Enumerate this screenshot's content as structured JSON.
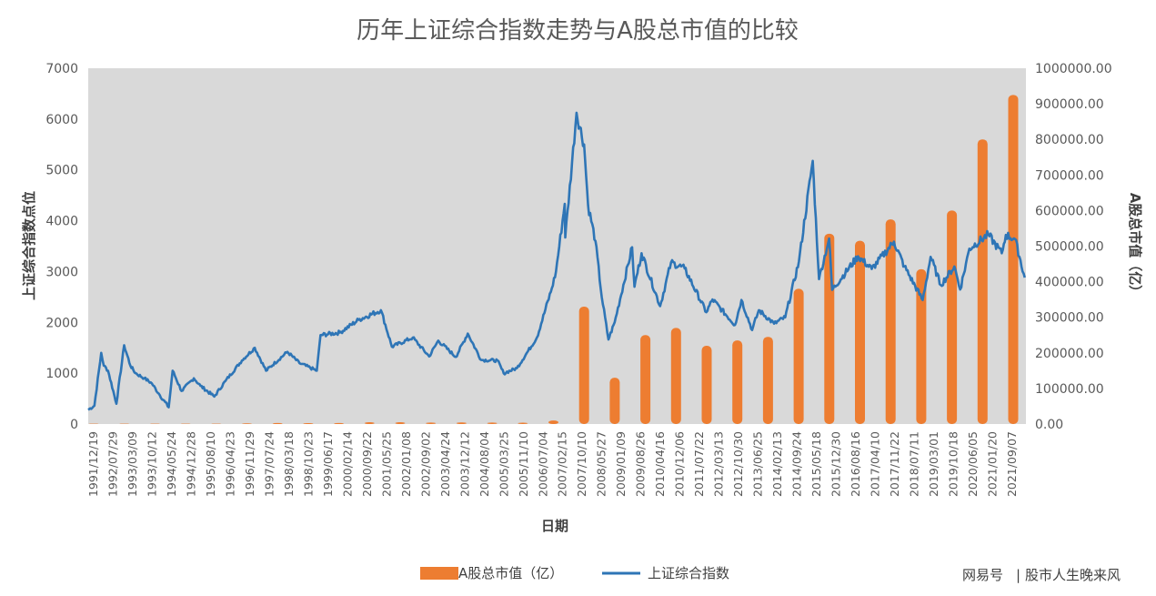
{
  "chart_data": {
    "type": "bar+line",
    "title": "历年上证综合指数走势与A股总市值的比较",
    "xlabel": "日期",
    "ylabel_left": "上证综合指数点位",
    "ylabel_right": "A股总市值（亿）",
    "ylim_left": [
      0,
      7000
    ],
    "ylim_right": [
      0,
      1000000
    ],
    "yticks_left": [
      "0",
      "1000",
      "2000",
      "3000",
      "4000",
      "5000",
      "6000",
      "7000"
    ],
    "yticks_right": [
      "0.00",
      "100000.00",
      "200000.00",
      "300000.00",
      "400000.00",
      "500000.00",
      "600000.00",
      "700000.00",
      "800000.00",
      "900000.00",
      "1000000.00"
    ],
    "categories": [
      "1991/12/19",
      "1992/07/29",
      "1993/03/09",
      "1993/10/12",
      "1994/05/24",
      "1994/12/28",
      "1995/08/10",
      "1996/04/23",
      "1996/11/29",
      "1997/07/24",
      "1998/03/18",
      "1998/10/23",
      "1999/06/17",
      "2000/02/14",
      "2000/09/22",
      "2001/05/25",
      "2002/01/08",
      "2002/09/02",
      "2003/04/24",
      "2003/12/12",
      "2004/08/04",
      "2005/03/25",
      "2005/11/10",
      "2006/07/04",
      "2007/02/15",
      "2007/10/10",
      "2008/05/27",
      "2009/01/09",
      "2009/08/26",
      "2010/04/16",
      "2010/12/06",
      "2011/07/22",
      "2012/03/13",
      "2012/10/30",
      "2013/06/25",
      "2014/02/13",
      "2014/09/24",
      "2015/05/18",
      "2015/12/30",
      "2016/08/16",
      "2017/04/10",
      "2017/11/22",
      "2018/07/11",
      "2019/03/01",
      "2019/10/18",
      "2020/06/05",
      "2021/01/20",
      "2021/09/07"
    ],
    "legend_position": "bottom",
    "grid": false,
    "series": [
      {
        "name": "A股总市值（亿）",
        "type": "bar",
        "axis": "right",
        "color": "#ED7D31",
        "bars": [
          {
            "date": "1991",
            "value": 1000
          },
          {
            "date": "1992",
            "value": 1000
          },
          {
            "date": "1993",
            "value": 1000
          },
          {
            "date": "1994",
            "value": 1000
          },
          {
            "date": "1995",
            "value": 1000
          },
          {
            "date": "1996",
            "value": 2000
          },
          {
            "date": "1997",
            "value": 3000
          },
          {
            "date": "1998",
            "value": 2500
          },
          {
            "date": "1999",
            "value": 3000
          },
          {
            "date": "2000",
            "value": 5000
          },
          {
            "date": "2001",
            "value": 5000
          },
          {
            "date": "2002",
            "value": 4300
          },
          {
            "date": "2003",
            "value": 4500
          },
          {
            "date": "2004",
            "value": 4300
          },
          {
            "date": "2005",
            "value": 3800
          },
          {
            "date": "2006",
            "value": 9800
          },
          {
            "date": "2007",
            "value": 330000
          },
          {
            "date": "2008",
            "value": 130000
          },
          {
            "date": "2009",
            "value": 250000
          },
          {
            "date": "2010",
            "value": 270000
          },
          {
            "date": "2011",
            "value": 220000
          },
          {
            "date": "2012",
            "value": 235000
          },
          {
            "date": "2013",
            "value": 245000
          },
          {
            "date": "2014",
            "value": 380000
          },
          {
            "date": "2015",
            "value": 535000
          },
          {
            "date": "2016",
            "value": 515000
          },
          {
            "date": "2017",
            "value": 575000
          },
          {
            "date": "2018",
            "value": 435000
          },
          {
            "date": "2019",
            "value": 600000
          },
          {
            "date": "2020",
            "value": 800000
          },
          {
            "date": "2021",
            "value": 925000
          }
        ]
      },
      {
        "name": "上证综合指数",
        "type": "line",
        "axis": "left",
        "color": "#2E75B6",
        "points": [
          {
            "date": "1991-12-19",
            "value": 280
          },
          {
            "date": "1992-03-01",
            "value": 360
          },
          {
            "date": "1992-05-21",
            "value": 1400
          },
          {
            "date": "1992-06-20",
            "value": 1150
          },
          {
            "date": "1992-08-10",
            "value": 1050
          },
          {
            "date": "1992-11-17",
            "value": 400
          },
          {
            "date": "1993-02-16",
            "value": 1550
          },
          {
            "date": "1993-05-01",
            "value": 1150
          },
          {
            "date": "1993-07-01",
            "value": 1000
          },
          {
            "date": "1993-10-12",
            "value": 900
          },
          {
            "date": "1994-01-10",
            "value": 800
          },
          {
            "date": "1994-04-01",
            "value": 600
          },
          {
            "date": "1994-07-29",
            "value": 330
          },
          {
            "date": "1994-09-13",
            "value": 1050
          },
          {
            "date": "1994-12-28",
            "value": 650
          },
          {
            "date": "1995-05-22",
            "value": 900
          },
          {
            "date": "1995-08-10",
            "value": 750
          },
          {
            "date": "1996-01-19",
            "value": 540
          },
          {
            "date": "1996-06-01",
            "value": 850
          },
          {
            "date": "1996-12-11",
            "value": 1250
          },
          {
            "date": "1997-05-12",
            "value": 1500
          },
          {
            "date": "1997-09-23",
            "value": 1050
          },
          {
            "date": "1998-06-03",
            "value": 1420
          },
          {
            "date": "1998-10-23",
            "value": 1200
          },
          {
            "date": "1999-05-17",
            "value": 1050
          },
          {
            "date": "1999-06-30",
            "value": 1750
          },
          {
            "date": "2000-02-14",
            "value": 1800
          },
          {
            "date": "2000-09-22",
            "value": 2050
          },
          {
            "date": "2001-06-14",
            "value": 2240
          },
          {
            "date": "2001-10-22",
            "value": 1520
          },
          {
            "date": "2002-06-25",
            "value": 1700
          },
          {
            "date": "2003-01-06",
            "value": 1330
          },
          {
            "date": "2003-04-24",
            "value": 1640
          },
          {
            "date": "2003-11-18",
            "value": 1320
          },
          {
            "date": "2004-04-07",
            "value": 1780
          },
          {
            "date": "2004-09-13",
            "value": 1260
          },
          {
            "date": "2005-03-25",
            "value": 1250
          },
          {
            "date": "2005-06-06",
            "value": 998
          },
          {
            "date": "2005-11-10",
            "value": 1100
          },
          {
            "date": "2006-07-04",
            "value": 1700
          },
          {
            "date": "2006-12-29",
            "value": 2675
          },
          {
            "date": "2007-02-15",
            "value": 3000
          },
          {
            "date": "2007-05-29",
            "value": 4330
          },
          {
            "date": "2007-06-05",
            "value": 3670
          },
          {
            "date": "2007-10-16",
            "value": 6124
          },
          {
            "date": "2008-01-14",
            "value": 5500
          },
          {
            "date": "2008-03-01",
            "value": 4300
          },
          {
            "date": "2008-05-27",
            "value": 3600
          },
          {
            "date": "2008-08-10",
            "value": 2500
          },
          {
            "date": "2008-10-28",
            "value": 1664
          },
          {
            "date": "2009-01-09",
            "value": 2000
          },
          {
            "date": "2009-08-04",
            "value": 3478
          },
          {
            "date": "2009-09-01",
            "value": 2700
          },
          {
            "date": "2009-11-24",
            "value": 3360
          },
          {
            "date": "2010-07-02",
            "value": 2320
          },
          {
            "date": "2010-11-08",
            "value": 3180
          },
          {
            "date": "2011-04-18",
            "value": 3060
          },
          {
            "date": "2011-12-31",
            "value": 2200
          },
          {
            "date": "2012-03-13",
            "value": 2450
          },
          {
            "date": "2012-12-04",
            "value": 1950
          },
          {
            "date": "2013-02-18",
            "value": 2440
          },
          {
            "date": "2013-06-25",
            "value": 1850
          },
          {
            "date": "2013-09-12",
            "value": 2240
          },
          {
            "date": "2014-03-12",
            "value": 1974
          },
          {
            "date": "2014-07-22",
            "value": 2100
          },
          {
            "date": "2014-12-31",
            "value": 3200
          },
          {
            "date": "2015-06-12",
            "value": 5178
          },
          {
            "date": "2015-08-26",
            "value": 2850
          },
          {
            "date": "2015-12-23",
            "value": 3650
          },
          {
            "date": "2016-01-28",
            "value": 2638
          },
          {
            "date": "2016-11-29",
            "value": 3300
          },
          {
            "date": "2017-05-11",
            "value": 3050
          },
          {
            "date": "2018-01-29",
            "value": 3587
          },
          {
            "date": "2018-06-01",
            "value": 3100
          },
          {
            "date": "2019-01-04",
            "value": 2440
          },
          {
            "date": "2019-04-08",
            "value": 3288
          },
          {
            "date": "2019-08-06",
            "value": 2733
          },
          {
            "date": "2020-01-14",
            "value": 3100
          },
          {
            "date": "2020-03-23",
            "value": 2646
          },
          {
            "date": "2020-07-09",
            "value": 3450
          },
          {
            "date": "2021-02-18",
            "value": 3730
          },
          {
            "date": "2021-07-28",
            "value": 3360
          },
          {
            "date": "2021-09-14",
            "value": 3720
          },
          {
            "date": "2022-01-01",
            "value": 3640
          },
          {
            "date": "2022-04-26",
            "value": 2880
          }
        ]
      }
    ]
  },
  "watermark": {
    "source": "网易号",
    "separator": "|",
    "author": "股市人生晚来风"
  }
}
